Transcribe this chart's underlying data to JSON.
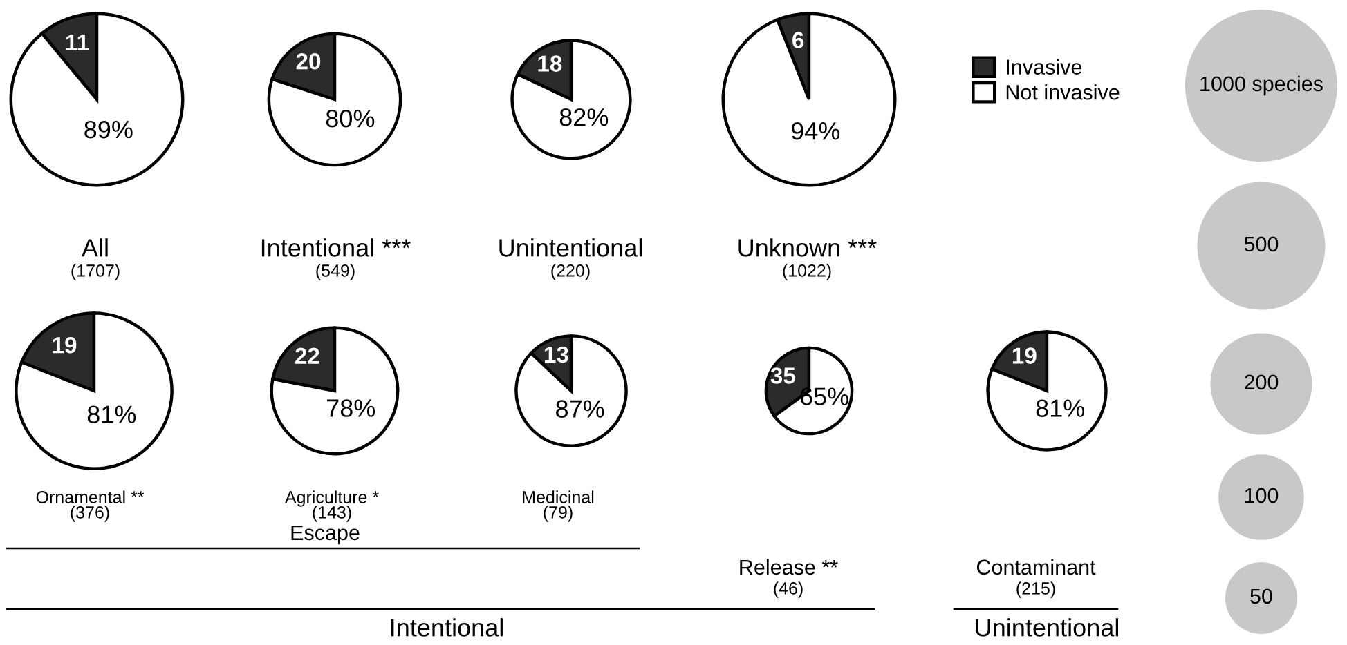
{
  "chart_data": [
    {
      "type": "pie",
      "title": "All",
      "subtitle": "(1707)",
      "categories": [
        "Invasive",
        "Not invasive"
      ],
      "values": [
        11,
        89
      ],
      "value_labels": [
        "11",
        "89%"
      ],
      "colors": [
        "#2b2b2b",
        "#ffffff"
      ],
      "legend": "right"
    },
    {
      "type": "pie",
      "title": "Intentional ***",
      "subtitle": "(549)",
      "values": [
        20,
        80
      ],
      "value_labels": [
        "20",
        "80%"
      ],
      "colors": [
        "#2b2b2b",
        "#ffffff"
      ]
    },
    {
      "type": "pie",
      "title": "Unintentional",
      "subtitle": "(220)",
      "values": [
        18,
        82
      ],
      "value_labels": [
        "18",
        "82%"
      ],
      "colors": [
        "#2b2b2b",
        "#ffffff"
      ]
    },
    {
      "type": "pie",
      "title": "Unknown ***",
      "subtitle": "(1022)",
      "values": [
        6,
        94
      ],
      "value_labels": [
        "6",
        "94%"
      ],
      "colors": [
        "#2b2b2b",
        "#ffffff"
      ]
    },
    {
      "type": "pie",
      "title": "Ornamental **",
      "subtitle": "(376)",
      "values": [
        19,
        81
      ],
      "value_labels": [
        "19",
        "81%"
      ],
      "colors": [
        "#2b2b2b",
        "#ffffff"
      ]
    },
    {
      "type": "pie",
      "title": "Agriculture *",
      "subtitle": "(143)",
      "values": [
        22,
        78
      ],
      "value_labels": [
        "22",
        "78%"
      ],
      "colors": [
        "#2b2b2b",
        "#ffffff"
      ]
    },
    {
      "type": "pie",
      "title": "Medicinal",
      "subtitle": "(79)",
      "values": [
        13,
        87
      ],
      "value_labels": [
        "13",
        "87%"
      ],
      "colors": [
        "#2b2b2b",
        "#ffffff"
      ]
    },
    {
      "type": "pie",
      "title": "Release **",
      "subtitle": "(46)",
      "values": [
        35,
        65
      ],
      "value_labels": [
        "35",
        "65%"
      ],
      "colors": [
        "#2b2b2b",
        "#ffffff"
      ]
    },
    {
      "type": "pie",
      "title": "Contaminant",
      "subtitle": "(215)",
      "values": [
        19,
        81
      ],
      "value_labels": [
        "19",
        "81%"
      ],
      "colors": [
        "#2b2b2b",
        "#ffffff"
      ]
    },
    {
      "type": "other",
      "annotations": [
        "Escape",
        "Intentional",
        "Unintentional"
      ]
    },
    {
      "type": "other",
      "values": [
        1000,
        500,
        200,
        100,
        50
      ],
      "value_labels": [
        "1000 species",
        "500",
        "200",
        "100",
        "50"
      ],
      "color": "#c8c8c8"
    }
  ]
}
